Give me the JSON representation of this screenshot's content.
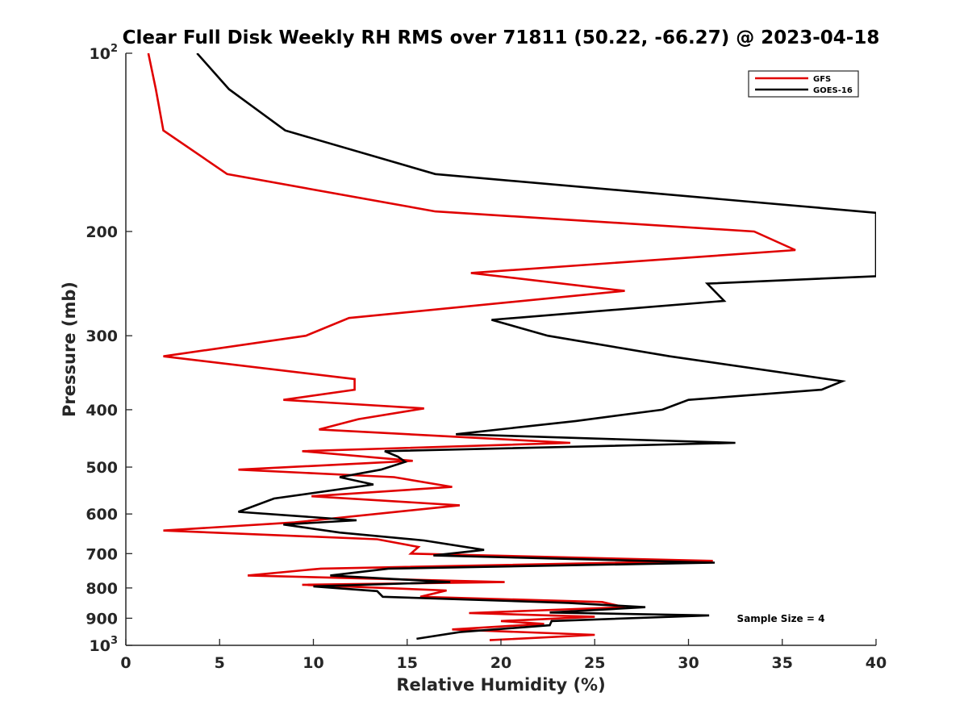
{
  "chart_data": {
    "type": "line",
    "title": "Clear Full Disk Weekly RH RMS over 71811 (50.22, -66.27) @ 2023-04-18",
    "xlabel": "Relative Humidity (%)",
    "ylabel": "Pressure (mb)",
    "xlim": [
      0,
      40
    ],
    "ylim": [
      100,
      1000
    ],
    "y_scale": "log",
    "y_reversed": true,
    "x_ticks": [
      "0",
      "5",
      "10",
      "15",
      "20",
      "25",
      "30",
      "35",
      "40"
    ],
    "y_ticks": [
      {
        "value": 100,
        "base": "10",
        "exp": "2",
        "label": ""
      },
      {
        "value": 200,
        "base": "",
        "exp": "",
        "label": "200"
      },
      {
        "value": 300,
        "base": "",
        "exp": "",
        "label": "300"
      },
      {
        "value": 400,
        "base": "",
        "exp": "",
        "label": "400"
      },
      {
        "value": 500,
        "base": "",
        "exp": "",
        "label": "500"
      },
      {
        "value": 600,
        "base": "",
        "exp": "",
        "label": "600"
      },
      {
        "value": 700,
        "base": "",
        "exp": "",
        "label": "700"
      },
      {
        "value": 800,
        "base": "",
        "exp": "",
        "label": "800"
      },
      {
        "value": 900,
        "base": "",
        "exp": "",
        "label": "900"
      },
      {
        "value": 1000,
        "base": "10",
        "exp": "3",
        "label": ""
      }
    ],
    "grid": false,
    "legend": "top-right",
    "annotation": "Sample Size = 4",
    "series": [
      {
        "name": "GFS",
        "color": "#e00000",
        "points": [
          [
            1.2,
            100
          ],
          [
            1.6,
            115
          ],
          [
            2,
            135
          ],
          [
            5.4,
            160
          ],
          [
            16.5,
            185
          ],
          [
            33.5,
            200
          ],
          [
            35.7,
            215
          ],
          [
            18.4,
            235
          ],
          [
            26.6,
            252
          ],
          [
            11.9,
            280
          ],
          [
            9.6,
            300
          ],
          [
            2,
            325
          ],
          [
            12.2,
            355
          ],
          [
            12.2,
            370
          ],
          [
            8.4,
            385
          ],
          [
            15.9,
            398
          ],
          [
            12.4,
            415
          ],
          [
            10.3,
            432
          ],
          [
            23.7,
            455
          ],
          [
            9.4,
            470
          ],
          [
            15.3,
            488
          ],
          [
            6,
            505
          ],
          [
            14.3,
            520
          ],
          [
            17.4,
            540
          ],
          [
            9.9,
            560
          ],
          [
            17.8,
            580
          ],
          [
            9,
            620
          ],
          [
            2,
            640
          ],
          [
            13.4,
            662
          ],
          [
            15.6,
            682
          ],
          [
            15.2,
            700
          ],
          [
            31.3,
            720
          ],
          [
            10.4,
            742
          ],
          [
            6.5,
            762
          ],
          [
            20.2,
            782
          ],
          [
            9.4,
            790
          ],
          [
            17.1,
            808
          ],
          [
            15.7,
            828
          ],
          [
            25.4,
            845
          ],
          [
            26.6,
            862
          ],
          [
            18.3,
            882
          ],
          [
            25,
            895
          ],
          [
            20,
            910
          ],
          [
            22.3,
            920
          ],
          [
            17.4,
            940
          ],
          [
            25,
            960
          ],
          [
            19.4,
            980
          ]
        ]
      },
      {
        "name": "GOES-16",
        "color": "#000000",
        "points": [
          [
            3.8,
            100
          ],
          [
            5.5,
            115
          ],
          [
            8.5,
            135
          ],
          [
            16.5,
            160
          ],
          [
            40,
            186
          ],
          [
            40,
            238
          ],
          [
            31,
            245
          ],
          [
            31.9,
            262
          ],
          [
            19.5,
            282
          ],
          [
            22.5,
            300
          ],
          [
            29,
            325
          ],
          [
            38.2,
            358
          ],
          [
            37.1,
            370
          ],
          [
            30,
            385
          ],
          [
            28.6,
            400
          ],
          [
            24,
            418
          ],
          [
            17.6,
            440
          ],
          [
            32.5,
            455
          ],
          [
            13.8,
            470
          ],
          [
            14.5,
            480
          ],
          [
            14.9,
            490
          ],
          [
            13.6,
            505
          ],
          [
            11.4,
            520
          ],
          [
            13.2,
            535
          ],
          [
            7.9,
            565
          ],
          [
            6,
            595
          ],
          [
            12.3,
            615
          ],
          [
            8.4,
            625
          ],
          [
            11.4,
            645
          ],
          [
            15.9,
            665
          ],
          [
            19.1,
            690
          ],
          [
            16.4,
            705
          ],
          [
            31.4,
            725
          ],
          [
            14,
            742
          ],
          [
            10.9,
            762
          ],
          [
            17.3,
            782
          ],
          [
            10,
            795
          ],
          [
            13.4,
            810
          ],
          [
            13.7,
            828
          ],
          [
            23.6,
            848
          ],
          [
            27.7,
            862
          ],
          [
            22.6,
            880
          ],
          [
            31.1,
            890
          ],
          [
            22.7,
            910
          ],
          [
            22.6,
            925
          ],
          [
            17.8,
            950
          ],
          [
            15.5,
            975
          ]
        ]
      }
    ]
  }
}
